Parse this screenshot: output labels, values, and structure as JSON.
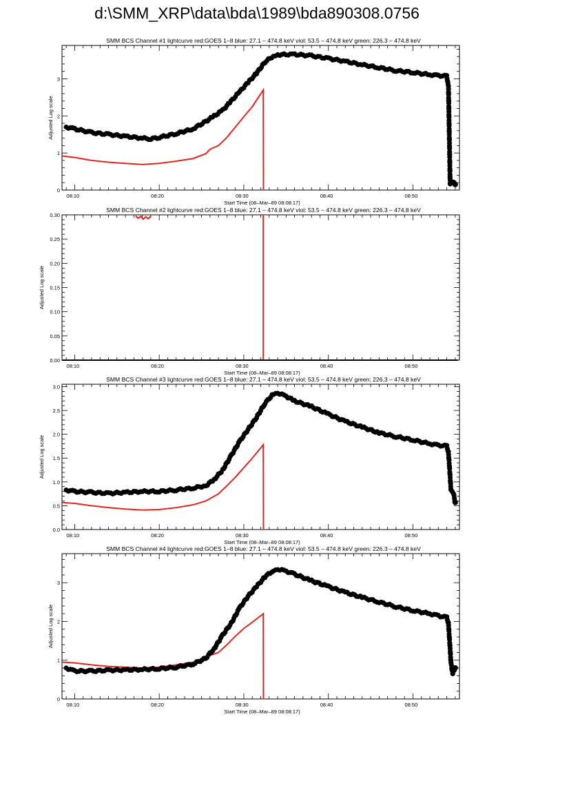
{
  "page": {
    "title": "d:\\SMM_XRP\\data\\bda\\1989\\bda890308.0756"
  },
  "colors": {
    "goes": "#e8231e",
    "channel": "#000000",
    "axis": "#000000"
  },
  "chart_data": [
    {
      "type": "line",
      "title": "SMM BCS Channel #1 lightcurve  red:GOES 1–8  blue: 27.1 – 474.8 keV  viol: 53.5 – 474.8 keV  green: 226.3 – 474.8 keV",
      "xlabel": "Start Time (08–Mar–89 08:08:17)",
      "ylabel": "Adjusted Log scale",
      "x_ticks": [
        "08:10",
        "08:20",
        "08:30",
        "08:40",
        "08:50"
      ],
      "x_ticks_min": [
        10,
        20,
        30,
        40,
        50
      ],
      "xlim": [
        8.5,
        55.5
      ],
      "ylim": [
        0,
        3.9
      ],
      "y_ticks": [
        0,
        1,
        2,
        3
      ],
      "y_tick_labels": [
        "0",
        "1",
        "2",
        "3"
      ],
      "series": [
        {
          "name": "GOES 1–8",
          "color": "#e8231e",
          "style": "line",
          "x": [
            8.5,
            10,
            12,
            14,
            16,
            18,
            20,
            22,
            24,
            25.5,
            26,
            27,
            28,
            29,
            30,
            31,
            32.3,
            32.32
          ],
          "y": [
            0.92,
            0.88,
            0.8,
            0.75,
            0.72,
            0.69,
            0.72,
            0.78,
            0.85,
            0.98,
            1.1,
            1.2,
            1.42,
            1.7,
            1.98,
            2.25,
            2.7,
            -0.6
          ]
        },
        {
          "name": "Channel #1",
          "color": "#000000",
          "style": "points",
          "x": [
            9,
            10,
            12,
            14,
            16,
            18,
            19,
            20,
            22,
            24,
            25.5,
            26.5,
            27.5,
            28.5,
            29.5,
            30.5,
            31.5,
            32.5,
            33.5,
            34,
            36,
            38,
            40,
            42,
            44,
            46,
            48,
            50,
            52,
            53,
            54,
            54.2,
            54.4,
            54.7,
            55
          ],
          "y": [
            1.7,
            1.65,
            1.55,
            1.5,
            1.45,
            1.4,
            1.38,
            1.42,
            1.52,
            1.65,
            1.85,
            2.0,
            2.15,
            2.4,
            2.65,
            2.9,
            3.15,
            3.45,
            3.62,
            3.65,
            3.66,
            3.62,
            3.55,
            3.47,
            3.38,
            3.3,
            3.22,
            3.17,
            3.11,
            3.09,
            3.07,
            2.78,
            0.15,
            0.22,
            0.15
          ]
        }
      ]
    },
    {
      "type": "line",
      "title": "SMM BCS Channel #2 lightcurve  red:GOES 1–8  blue: 27.1 – 474.8 keV  viol: 53.5 – 474.8 keV  green: 226.3 – 474.8 keV",
      "xlabel": "Start Time (08–Mar–89 08:08:17)",
      "ylabel": "Adjusted Log scale",
      "x_ticks": [
        "08:10",
        "08:20",
        "08:30",
        "08:40",
        "08:50"
      ],
      "x_ticks_min": [
        10,
        20,
        30,
        40,
        50
      ],
      "xlim": [
        8.5,
        55.5
      ],
      "ylim": [
        0,
        0.3
      ],
      "y_ticks": [
        0,
        0.05,
        0.1,
        0.15,
        0.2,
        0.25,
        0.3
      ],
      "y_tick_labels": [
        "0.00",
        "0.05",
        "0.10",
        "0.15",
        "0.20",
        "0.25",
        "0.30"
      ],
      "series": [
        {
          "name": "GOES 1–8",
          "color": "#e8231e",
          "style": "line",
          "x": [
            17.2,
            17.5,
            17.8,
            18.1,
            18.4,
            18.7,
            19.0
          ],
          "y": [
            0.298,
            0.293,
            0.297,
            0.291,
            0.296,
            0.292,
            0.297
          ]
        },
        {
          "name": "GOES 1–8 drop",
          "color": "#e8231e",
          "style": "line",
          "x": [
            32.3,
            32.3
          ],
          "y": [
            0.31,
            -0.01
          ]
        },
        {
          "name": "Channel #2",
          "color": "#000000",
          "style": "line",
          "x": [
            8.5,
            55.3
          ],
          "y": [
            0,
            0
          ]
        }
      ]
    },
    {
      "type": "line",
      "title": "SMM BCS Channel #3 lightcurve  red:GOES 1–8  blue: 27.1 – 474.8 keV  viol: 53.5 – 474.8 keV  green: 226.3 – 474.8 keV",
      "xlabel": "Start Time (08–Mar–89 08:08:17)",
      "ylabel": "Adjusted Log scale",
      "x_ticks": [
        "08:10",
        "08:20",
        "08:30",
        "08:40",
        "08:50"
      ],
      "x_ticks_min": [
        10,
        20,
        30,
        40,
        50
      ],
      "xlim": [
        8.5,
        55.5
      ],
      "ylim": [
        0,
        3.05
      ],
      "y_ticks": [
        0,
        0.5,
        1.0,
        1.5,
        2.0,
        2.5,
        3.0
      ],
      "y_tick_labels": [
        "0.0",
        "0.5",
        "1.0",
        "1.5",
        "2.0",
        "2.5",
        "3.0"
      ],
      "series": [
        {
          "name": "GOES 1–8",
          "color": "#e8231e",
          "style": "line",
          "x": [
            8.5,
            10,
            12,
            14,
            16,
            18,
            20,
            22,
            24,
            25.5,
            26,
            27,
            28,
            29,
            30,
            31,
            32.3,
            32.32
          ],
          "y": [
            0.57,
            0.55,
            0.5,
            0.46,
            0.43,
            0.41,
            0.42,
            0.46,
            0.52,
            0.6,
            0.65,
            0.75,
            0.92,
            1.1,
            1.3,
            1.5,
            1.78,
            -0.1
          ]
        },
        {
          "name": "Channel #3",
          "color": "#000000",
          "style": "points",
          "x": [
            9,
            10,
            12,
            14,
            16,
            18,
            20,
            22,
            24,
            25.5,
            26.5,
            27.5,
            28.5,
            29.5,
            30.5,
            31.5,
            32.5,
            33.5,
            34,
            35,
            36,
            38,
            40,
            42,
            44,
            46,
            48,
            50,
            52,
            53,
            54,
            54.2,
            54.5,
            54.8,
            55
          ],
          "y": [
            0.83,
            0.8,
            0.78,
            0.76,
            0.78,
            0.8,
            0.8,
            0.83,
            0.87,
            0.92,
            1.05,
            1.25,
            1.55,
            1.85,
            2.1,
            2.35,
            2.65,
            2.85,
            2.87,
            2.8,
            2.7,
            2.58,
            2.42,
            2.27,
            2.15,
            2.03,
            1.95,
            1.88,
            1.8,
            1.77,
            1.75,
            1.62,
            0.82,
            0.75,
            0.57
          ]
        }
      ]
    },
    {
      "type": "line",
      "title": "SMM BCS Channel #4 lightcurve  red:GOES 1–8  blue: 27.1 – 474.8 keV  viol: 53.5 – 474.8 keV  green: 226.3 – 474.8 keV",
      "xlabel": "Start Time (08–Mar–89 08:08:17)",
      "ylabel": "Adjusted Log scale",
      "x_ticks": [
        "08:10",
        "08:20",
        "08:30",
        "08:40",
        "08:50"
      ],
      "x_ticks_min": [
        10,
        20,
        30,
        40,
        50
      ],
      "xlim": [
        8.5,
        55.5
      ],
      "ylim": [
        0,
        3.75
      ],
      "y_ticks": [
        0,
        1,
        2,
        3
      ],
      "y_tick_labels": [
        "0",
        "1",
        "2",
        "3"
      ],
      "series": [
        {
          "name": "GOES 1–8",
          "color": "#e8231e",
          "style": "line",
          "x": [
            8.5,
            10,
            12,
            14,
            16,
            18,
            20,
            22,
            24,
            25.5,
            26,
            27,
            28,
            29,
            30,
            31,
            32.3,
            32.32
          ],
          "y": [
            0.95,
            0.93,
            0.88,
            0.84,
            0.82,
            0.8,
            0.82,
            0.88,
            0.95,
            1.05,
            1.12,
            1.2,
            1.4,
            1.62,
            1.82,
            1.98,
            2.2,
            -0.6
          ]
        },
        {
          "name": "Channel #4",
          "color": "#000000",
          "style": "points",
          "x": [
            9,
            10,
            12,
            14,
            16,
            18,
            20,
            22,
            24,
            25.5,
            26.5,
            27.5,
            28.5,
            29.5,
            30.5,
            31.5,
            32.5,
            33.5,
            34,
            35,
            36,
            38,
            40,
            42,
            44,
            46,
            48,
            50,
            52,
            53,
            54,
            54.2,
            54.5,
            54.7,
            55
          ],
          "y": [
            0.8,
            0.72,
            0.72,
            0.74,
            0.75,
            0.76,
            0.78,
            0.82,
            0.9,
            1.05,
            1.3,
            1.65,
            1.95,
            2.35,
            2.65,
            2.9,
            3.15,
            3.32,
            3.35,
            3.3,
            3.22,
            3.05,
            2.9,
            2.75,
            2.62,
            2.5,
            2.38,
            2.28,
            2.2,
            2.15,
            2.1,
            1.95,
            0.92,
            0.65,
            0.8
          ]
        }
      ]
    }
  ]
}
